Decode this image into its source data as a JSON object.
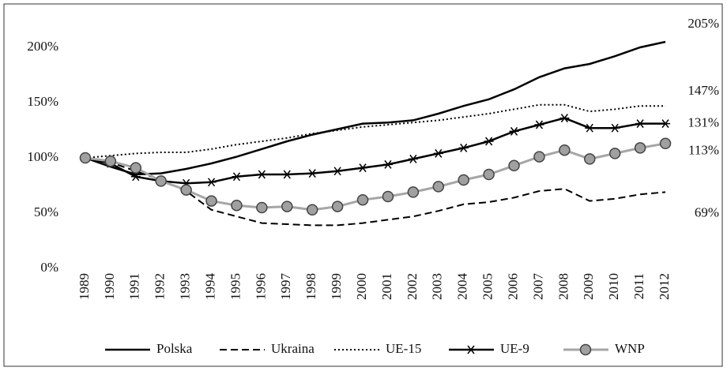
{
  "chart_data": {
    "type": "line",
    "categories": [
      "1989",
      "1990",
      "1991",
      "1992",
      "1993",
      "1994",
      "1995",
      "1996",
      "1997",
      "1998",
      "1999",
      "2000",
      "2001",
      "2002",
      "2003",
      "2004",
      "2005",
      "2006",
      "2007",
      "2008",
      "2009",
      "2010",
      "2011",
      "2012"
    ],
    "series": [
      {
        "name": "Polska",
        "color": "#000000",
        "dash": "solid",
        "marker": "none",
        "values": [
          100,
          92,
          85,
          86,
          90,
          95,
          101,
          108,
          115,
          121,
          126,
          131,
          132,
          134,
          140,
          147,
          153,
          162,
          173,
          181,
          185,
          192,
          200,
          205
        ],
        "value_labels": [
          null,
          null,
          null,
          null,
          null,
          null,
          null,
          null,
          null,
          null,
          null,
          null,
          null,
          null,
          null,
          null,
          null,
          null,
          null,
          null,
          null,
          null,
          null,
          "205%"
        ]
      },
      {
        "name": "Ukraina",
        "color": "#000000",
        "dash": "dashed",
        "marker": "none",
        "values": [
          100,
          96,
          88,
          80,
          70,
          53,
          47,
          41,
          40,
          39,
          39,
          41,
          44,
          47,
          52,
          58,
          60,
          64,
          70,
          72,
          61,
          63,
          67,
          69
        ],
        "value_labels": [
          null,
          null,
          null,
          null,
          null,
          null,
          null,
          null,
          null,
          null,
          null,
          null,
          null,
          null,
          null,
          null,
          null,
          null,
          null,
          null,
          null,
          null,
          null,
          "69%"
        ]
      },
      {
        "name": "UE-15",
        "color": "#000000",
        "dash": "dotted",
        "marker": "none",
        "values": [
          100,
          102,
          104,
          105,
          105,
          108,
          112,
          115,
          118,
          122,
          125,
          128,
          130,
          132,
          134,
          137,
          140,
          144,
          148,
          148,
          142,
          144,
          147,
          147
        ],
        "value_labels": [
          null,
          null,
          null,
          null,
          null,
          null,
          null,
          null,
          null,
          null,
          null,
          null,
          null,
          null,
          null,
          null,
          null,
          null,
          null,
          null,
          null,
          null,
          null,
          "147%"
        ]
      },
      {
        "name": "UE-9",
        "color": "#000000",
        "dash": "solid",
        "marker": "star",
        "values": [
          100,
          95,
          83,
          79,
          77,
          78,
          83,
          85,
          85,
          86,
          88,
          91,
          94,
          99,
          104,
          109,
          115,
          124,
          130,
          136,
          127,
          127,
          131,
          131
        ],
        "value_labels": [
          null,
          null,
          null,
          null,
          null,
          null,
          null,
          null,
          null,
          null,
          null,
          null,
          null,
          null,
          null,
          null,
          null,
          null,
          null,
          null,
          null,
          null,
          null,
          "131%"
        ]
      },
      {
        "name": "WNP",
        "color": "#a6a6a6",
        "dash": "solid",
        "marker": "circle",
        "values": [
          100,
          97,
          91,
          79,
          71,
          61,
          57,
          55,
          56,
          53,
          56,
          62,
          65,
          69,
          74,
          80,
          85,
          93,
          101,
          107,
          99,
          104,
          109,
          113
        ],
        "value_labels": [
          null,
          null,
          null,
          null,
          null,
          null,
          null,
          null,
          null,
          null,
          null,
          null,
          null,
          null,
          null,
          null,
          null,
          null,
          null,
          null,
          null,
          null,
          null,
          "113%"
        ]
      }
    ],
    "ylim": [
      0,
      220
    ],
    "yticks": [
      {
        "value": 0,
        "label": "0%"
      },
      {
        "value": 50,
        "label": "50%"
      },
      {
        "value": 100,
        "label": "100%"
      },
      {
        "value": 150,
        "label": "150%"
      },
      {
        "value": 200,
        "label": "200%"
      }
    ],
    "grid": false,
    "legend": "bottom"
  }
}
